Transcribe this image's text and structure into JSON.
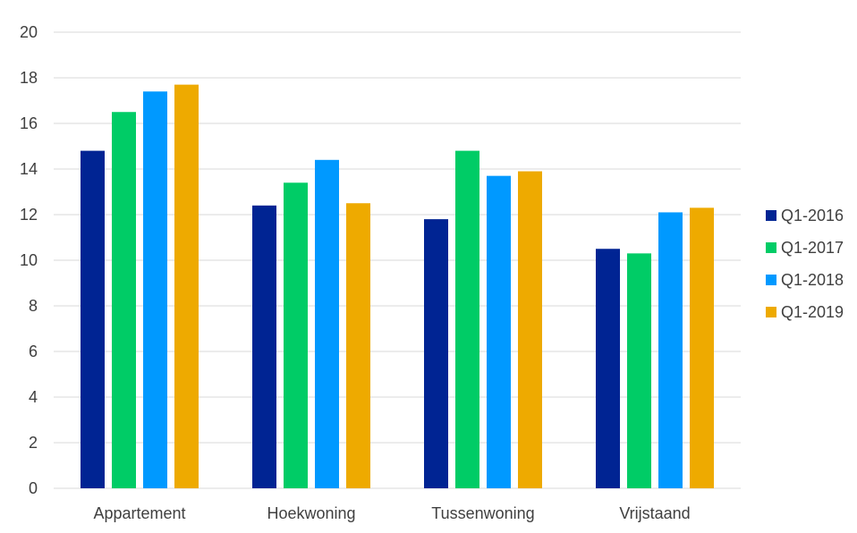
{
  "chart_data": {
    "type": "bar",
    "title": "",
    "xlabel": "",
    "ylabel": "",
    "categories": [
      "Appartement",
      "Hoekwoning",
      "Tussenwoning",
      "Vrijstaand"
    ],
    "series": [
      {
        "name": "Q1-2016",
        "color": "#002493",
        "values": [
          14.8,
          12.4,
          11.8,
          10.5
        ]
      },
      {
        "name": "Q1-2017",
        "color": "#00CC66",
        "values": [
          16.5,
          13.4,
          14.8,
          10.3
        ]
      },
      {
        "name": "Q1-2018",
        "color": "#0099FF",
        "values": [
          17.4,
          14.4,
          13.7,
          12.1
        ]
      },
      {
        "name": "Q1-2019",
        "color": "#EEAA00",
        "values": [
          17.7,
          12.5,
          13.9,
          12.3
        ]
      }
    ],
    "ylim": [
      0,
      20
    ],
    "yticks": [
      "0",
      "2",
      "4",
      "6",
      "8",
      "10",
      "12",
      "14",
      "16",
      "18",
      "20"
    ],
    "grid": true,
    "legend_position": "right",
    "colors": {
      "grid": "#D9D9D9",
      "axis_text": "#404040",
      "background": "#FFFFFF"
    }
  }
}
